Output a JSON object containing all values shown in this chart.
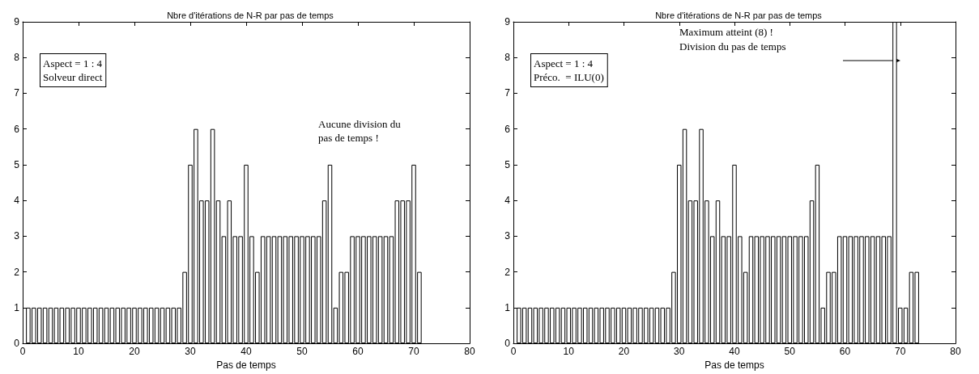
{
  "chart_data": [
    {
      "type": "bar",
      "title": "Nbre d'itérations de N-R par pas de temps",
      "xlabel": "Pas de temps",
      "x": [
        1,
        2,
        3,
        4,
        5,
        6,
        7,
        8,
        9,
        10,
        11,
        12,
        13,
        14,
        15,
        16,
        17,
        18,
        19,
        20,
        21,
        22,
        23,
        24,
        25,
        26,
        27,
        28,
        29,
        30,
        31,
        32,
        33,
        34,
        35,
        36,
        37,
        38,
        39,
        40,
        41,
        42,
        43,
        44,
        45,
        46,
        47,
        48,
        49,
        50,
        51,
        52,
        53,
        54,
        55,
        56,
        57,
        58,
        59,
        60,
        61,
        62,
        63,
        64,
        65,
        66,
        67,
        68,
        69,
        70,
        71
      ],
      "values": [
        1,
        1,
        1,
        1,
        1,
        1,
        1,
        1,
        1,
        1,
        1,
        1,
        1,
        1,
        1,
        1,
        1,
        1,
        1,
        1,
        1,
        1,
        1,
        1,
        1,
        1,
        1,
        1,
        2,
        5,
        6,
        4,
        4,
        6,
        4,
        3,
        4,
        3,
        3,
        5,
        3,
        2,
        3,
        3,
        3,
        3,
        3,
        3,
        3,
        3,
        3,
        3,
        3,
        4,
        5,
        1,
        2,
        2,
        3,
        3,
        3,
        3,
        3,
        3,
        3,
        3,
        4,
        4,
        4,
        5,
        2
      ],
      "color": "#ffffff",
      "xlim": [
        0,
        80
      ],
      "xticks": [
        0,
        10,
        20,
        30,
        40,
        50,
        60,
        70,
        80
      ],
      "ylim": [
        0,
        9
      ],
      "yticks": [
        0,
        1,
        2,
        3,
        4,
        5,
        6,
        7,
        8,
        9
      ],
      "grid": false,
      "annotations": [
        "Aspect = 1 : 4\nSolveur direct",
        "Aucune division du\npas de temps !"
      ]
    },
    {
      "type": "bar",
      "title": "Nbre d'itérations de N-R par pas de temps",
      "xlabel": "Pas de temps",
      "x": [
        1,
        2,
        3,
        4,
        5,
        6,
        7,
        8,
        9,
        10,
        11,
        12,
        13,
        14,
        15,
        16,
        17,
        18,
        19,
        20,
        21,
        22,
        23,
        24,
        25,
        26,
        27,
        28,
        29,
        30,
        31,
        32,
        33,
        34,
        35,
        36,
        37,
        38,
        39,
        40,
        41,
        42,
        43,
        44,
        45,
        46,
        47,
        48,
        49,
        50,
        51,
        52,
        53,
        54,
        55,
        56,
        57,
        58,
        59,
        60,
        61,
        62,
        63,
        64,
        65,
        66,
        67,
        68,
        69,
        70,
        71,
        72,
        73
      ],
      "values": [
        1,
        1,
        1,
        1,
        1,
        1,
        1,
        1,
        1,
        1,
        1,
        1,
        1,
        1,
        1,
        1,
        1,
        1,
        1,
        1,
        1,
        1,
        1,
        1,
        1,
        1,
        1,
        1,
        2,
        5,
        6,
        4,
        4,
        6,
        4,
        3,
        4,
        3,
        3,
        5,
        3,
        2,
        3,
        3,
        3,
        3,
        3,
        3,
        3,
        3,
        3,
        3,
        3,
        4,
        5,
        1,
        2,
        2,
        3,
        3,
        3,
        3,
        3,
        3,
        3,
        3,
        3,
        3,
        9,
        1,
        1,
        2,
        2
      ],
      "color": "#ffffff",
      "xlim": [
        0,
        80
      ],
      "xticks": [
        0,
        10,
        20,
        30,
        40,
        50,
        60,
        70,
        80
      ],
      "ylim": [
        0,
        9
      ],
      "yticks": [
        0,
        1,
        2,
        3,
        4,
        5,
        6,
        7,
        8,
        9
      ],
      "grid": false,
      "annotations": [
        "Aspect = 1 : 4\nPréco.  = ILU(0)",
        "Maximum atteint (8) !\nDivision du pas de temps"
      ]
    }
  ]
}
